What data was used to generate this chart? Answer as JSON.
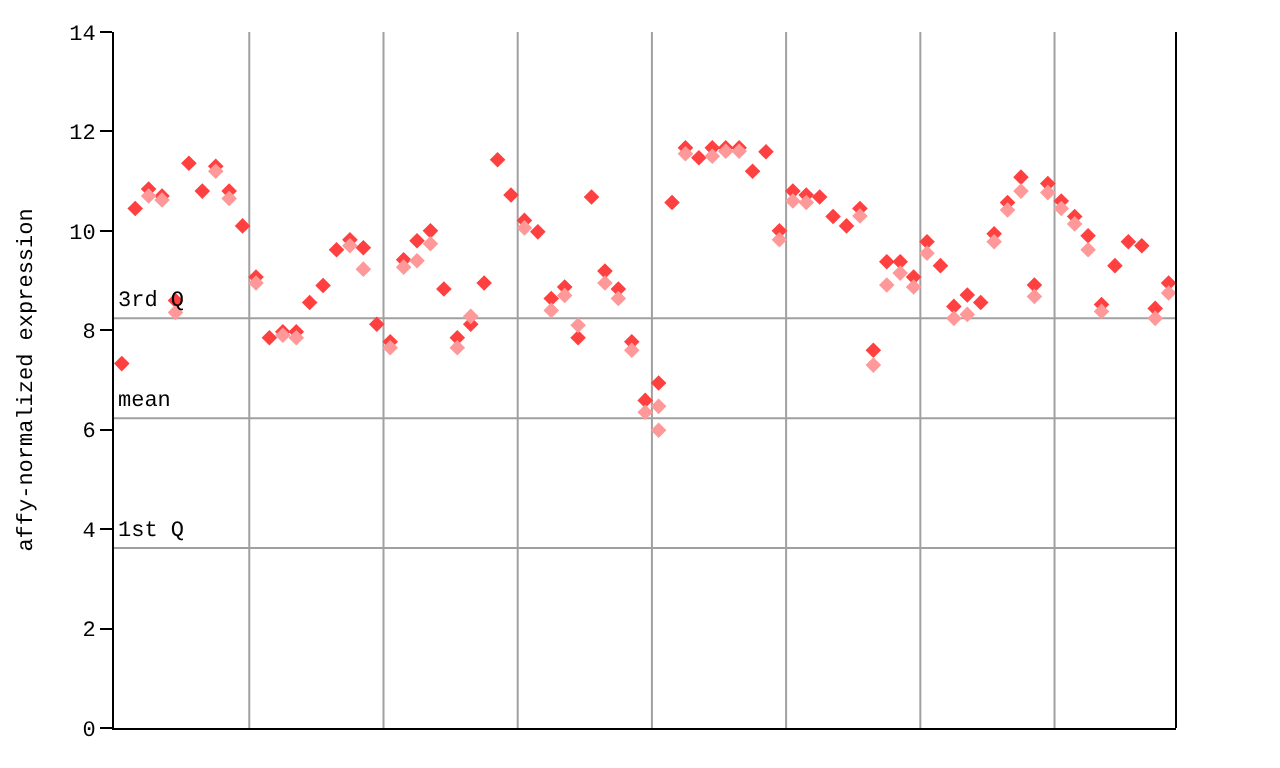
{
  "chart_data": {
    "type": "scatter",
    "ylabel": "affy-normalized expression",
    "categories": [
      null,
      null,
      null,
      null,
      null,
      null,
      null,
      null,
      null,
      null,
      null,
      null,
      null,
      null,
      null,
      null,
      null,
      null,
      null,
      null,
      null,
      null,
      null,
      null,
      null,
      null,
      null,
      null,
      null,
      null,
      null,
      null,
      null,
      null,
      null,
      null,
      null,
      null,
      null,
      null,
      null,
      null,
      null,
      null,
      null,
      null,
      null,
      null,
      null,
      null,
      null,
      null,
      null,
      null,
      null,
      null,
      null,
      null,
      null,
      null,
      null,
      null,
      null,
      null,
      null,
      null,
      null,
      null,
      null,
      null,
      null,
      null,
      null,
      null,
      null,
      null,
      null,
      null,
      null
    ],
    "ylim": [
      0,
      14
    ],
    "yticks": [
      0,
      2,
      4,
      6,
      8,
      10,
      12,
      14
    ],
    "marker": "diamond",
    "ref_lines": [
      {
        "axis": "y",
        "value": 8.24,
        "label": "3rd Q",
        "color": "#a0a0a0"
      },
      {
        "axis": "y",
        "value": 6.23,
        "label": "mean",
        "color": "#a0a0a0"
      },
      {
        "axis": "y",
        "value": 3.62,
        "label": "1st Q",
        "color": "#a0a0a0"
      }
    ],
    "series": [
      {
        "color": "#ff4040",
        "values": [
          7.33,
          10.45,
          10.84,
          10.7,
          8.6,
          11.36,
          10.8,
          11.3,
          10.8,
          10.1,
          9.07,
          7.85,
          7.97,
          7.97,
          8.56,
          8.9,
          9.62,
          9.82,
          9.66,
          8.12,
          7.77,
          9.42,
          9.8,
          10.0,
          8.83,
          7.85,
          8.12,
          8.95,
          11.43,
          10.72,
          10.21,
          9.98,
          8.64,
          8.87,
          7.85,
          10.68,
          9.19,
          8.83,
          7.77,
          6.59,
          6.94,
          10.57,
          11.67,
          11.47,
          11.67,
          11.67,
          11.67,
          11.2,
          11.59,
          10.0,
          10.8,
          10.72,
          10.68,
          10.29,
          10.1,
          10.45,
          7.6,
          9.38,
          9.38,
          9.07,
          9.78,
          9.3,
          8.48,
          8.71,
          8.56,
          9.94,
          10.57,
          11.08,
          8.91,
          10.95,
          10.6,
          10.29,
          9.9,
          8.52,
          9.3,
          9.78,
          9.7,
          8.44,
          8.95
        ]
      },
      {
        "color": "#ff9999",
        "values": [
          null,
          null,
          10.7,
          10.62,
          8.36,
          null,
          null,
          11.2,
          10.65,
          null,
          8.95,
          null,
          7.9,
          7.85,
          null,
          null,
          null,
          9.7,
          9.23,
          null,
          7.65,
          9.27,
          9.4,
          9.74,
          null,
          7.65,
          8.28,
          null,
          null,
          null,
          10.06,
          null,
          8.4,
          8.7,
          8.1,
          null,
          8.95,
          8.64,
          7.6,
          6.35,
          6.47,
          null,
          11.55,
          null,
          11.5,
          11.6,
          11.6,
          null,
          null,
          9.82,
          10.6,
          10.57,
          null,
          null,
          null,
          10.3,
          7.3,
          8.91,
          9.15,
          8.87,
          9.55,
          null,
          8.24,
          8.32,
          null,
          9.78,
          10.42,
          10.8,
          8.68,
          10.77,
          10.45,
          10.14,
          9.62,
          8.38,
          null,
          null,
          null,
          8.24,
          8.75
        ]
      },
      {
        "color": "#ff9999",
        "values": [
          null,
          null,
          null,
          null,
          null,
          null,
          null,
          null,
          null,
          null,
          null,
          null,
          null,
          null,
          null,
          null,
          null,
          null,
          null,
          null,
          null,
          null,
          null,
          null,
          null,
          null,
          null,
          null,
          null,
          null,
          null,
          null,
          null,
          null,
          null,
          null,
          null,
          null,
          null,
          null,
          5.99,
          null,
          null,
          null,
          null,
          null,
          null,
          null,
          null,
          null,
          null,
          null,
          null,
          null,
          null,
          null,
          null,
          null,
          null,
          null,
          null,
          null,
          null,
          null,
          null,
          null,
          null,
          null,
          null,
          null,
          null,
          null,
          null,
          null,
          null,
          null,
          null,
          null,
          null
        ]
      }
    ]
  }
}
